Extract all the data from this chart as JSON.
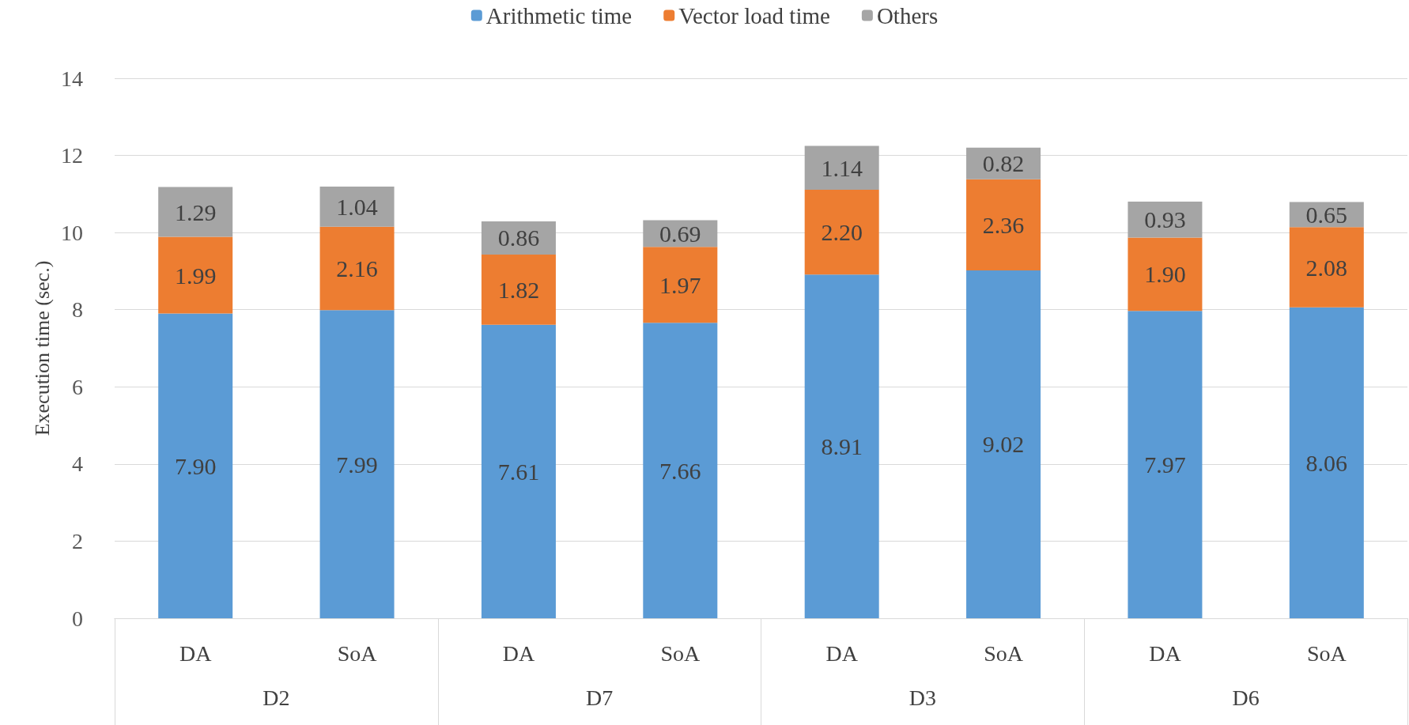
{
  "chart_data": {
    "type": "bar",
    "stacked": true,
    "ylabel": "Execution time (sec.)",
    "categories": [
      "DA",
      "SoA",
      "DA",
      "SoA",
      "DA",
      "SoA",
      "DA",
      "SoA"
    ],
    "annotations": [
      "D2",
      "D7",
      "D3",
      "D6"
    ],
    "series": [
      {
        "name": "Arithmetic time",
        "color": "#5b9bd5",
        "values": [
          7.9,
          7.99,
          7.61,
          7.66,
          8.91,
          9.02,
          7.97,
          8.06
        ],
        "value_labels": [
          "7.90",
          "7.99",
          "7.61",
          "7.66",
          "8.91",
          "9.02",
          "7.97",
          "8.06"
        ]
      },
      {
        "name": "Vector load time",
        "color": "#ed7d31",
        "values": [
          1.99,
          2.16,
          1.82,
          1.97,
          2.2,
          2.36,
          1.9,
          2.08
        ],
        "value_labels": [
          "1.99",
          "2.16",
          "1.82",
          "1.97",
          "2.20",
          "2.36",
          "1.90",
          "2.08"
        ]
      },
      {
        "name": "Others",
        "color": "#a5a5a5",
        "values": [
          1.29,
          1.04,
          0.86,
          0.69,
          1.14,
          0.82,
          0.93,
          0.65
        ],
        "value_labels": [
          "1.29",
          "1.04",
          "0.86",
          "0.69",
          "1.14",
          "0.82",
          "0.93",
          "0.65"
        ]
      }
    ],
    "ylim": [
      0,
      14
    ],
    "yticks": [
      0,
      2,
      4,
      6,
      8,
      10,
      12,
      14
    ],
    "grid": "y",
    "legend": "top"
  }
}
